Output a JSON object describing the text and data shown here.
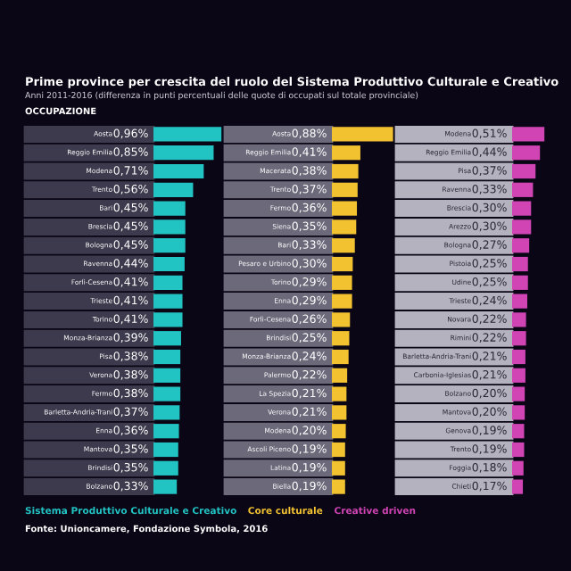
{
  "chart_data": [
    {
      "type": "bar",
      "orientation": "horizontal",
      "title": "Prime province per crescita del ruolo del Sistema Produttivo Culturale e Creativo",
      "subtitle": "Anni 2011-2016 (differenza in punti percentuali delle quote di occupati sul totale provinciale)",
      "annotations": [
        "OCCUPAZIONE",
        "Fonte: Unioncamere, Fondazione Symbola, 2016"
      ],
      "legend": "bottom",
      "tick_labels": false,
      "categories": [
        "Aosta",
        "Reggio Emilia",
        "Modena",
        "Trento",
        "Bari",
        "Brescia",
        "Bologna",
        "Ravenna",
        "Forlì-Cesena",
        "Trieste",
        "Torino",
        "Monza-Brianza",
        "Pisa",
        "Verona",
        "Fermo",
        "Barletta-Andria-Trani",
        "Enna",
        "Mantova",
        "Brindisi",
        "Bolzano"
      ],
      "series": [
        {
          "name": "Sistema Produttivo Culturale e Creativo",
          "color": "#22c3c3",
          "values": [
            0.96,
            0.85,
            0.71,
            0.56,
            0.45,
            0.45,
            0.45,
            0.44,
            0.41,
            0.41,
            0.41,
            0.39,
            0.38,
            0.38,
            0.38,
            0.37,
            0.36,
            0.35,
            0.35,
            0.33
          ],
          "value_labels": [
            "0,96%",
            "0,85%",
            "0,71%",
            "0,56%",
            "0,45%",
            "0,45%",
            "0,45%",
            "0,44%",
            "0,41%",
            "0,41%",
            "0,41%",
            "0,39%",
            "0,38%",
            "0,38%",
            "0,38%",
            "0,37%",
            "0,36%",
            "0,35%",
            "0,35%",
            "0,33%"
          ]
        }
      ]
    },
    {
      "type": "bar",
      "orientation": "horizontal",
      "legend": "bottom",
      "tick_labels": false,
      "categories": [
        "Aosta",
        "Reggio Emilia",
        "Macerata",
        "Trento",
        "Fermo",
        "Siena",
        "Bari",
        "Pesaro e Urbino",
        "Torino",
        "Enna",
        "Forlì-Cesena",
        "Brindisi",
        "Monza-Brianza",
        "Palermo",
        "La Spezia",
        "Verona",
        "Modena",
        "Ascoli Piceno",
        "Latina",
        "Biella"
      ],
      "series": [
        {
          "name": "Core culturale",
          "color": "#f2c230",
          "values": [
            0.88,
            0.41,
            0.38,
            0.37,
            0.36,
            0.35,
            0.33,
            0.3,
            0.29,
            0.29,
            0.26,
            0.25,
            0.24,
            0.22,
            0.21,
            0.21,
            0.2,
            0.19,
            0.19,
            0.19
          ],
          "value_labels": [
            "0,88%",
            "0,41%",
            "0,38%",
            "0,37%",
            "0,36%",
            "0,35%",
            "0,33%",
            "0,30%",
            "0,29%",
            "0,29%",
            "0,26%",
            "0,25%",
            "0,24%",
            "0,22%",
            "0,21%",
            "0,21%",
            "0,20%",
            "0,19%",
            "0,19%",
            "0,19%"
          ]
        }
      ]
    },
    {
      "type": "bar",
      "orientation": "horizontal",
      "legend": "bottom",
      "tick_labels": false,
      "categories": [
        "Modena",
        "Reggio Emilia",
        "Pisa",
        "Ravenna",
        "Brescia",
        "Arezzo",
        "Bologna",
        "Pistoia",
        "Udine",
        "Trieste",
        "Novara",
        "Rimini",
        "Barletta-Andria-Trani",
        "Carbonia-Iglesias",
        "Bolzano",
        "Mantova",
        "Genova",
        "Trento",
        "Foggia",
        "Chieti"
      ],
      "series": [
        {
          "name": "Creative driven",
          "color": "#d044b4",
          "values": [
            0.51,
            0.44,
            0.37,
            0.33,
            0.3,
            0.3,
            0.27,
            0.25,
            0.25,
            0.24,
            0.22,
            0.22,
            0.21,
            0.21,
            0.2,
            0.2,
            0.19,
            0.19,
            0.18,
            0.17
          ],
          "value_labels": [
            "0,51%",
            "0,44%",
            "0,37%",
            "0,33%",
            "0,30%",
            "0,30%",
            "0,27%",
            "0,25%",
            "0,25%",
            "0,24%",
            "0,22%",
            "0,22%",
            "0,21%",
            "0,21%",
            "0,20%",
            "0,20%",
            "0,19%",
            "0,19%",
            "0,18%",
            "0,17%"
          ]
        }
      ]
    }
  ]
}
